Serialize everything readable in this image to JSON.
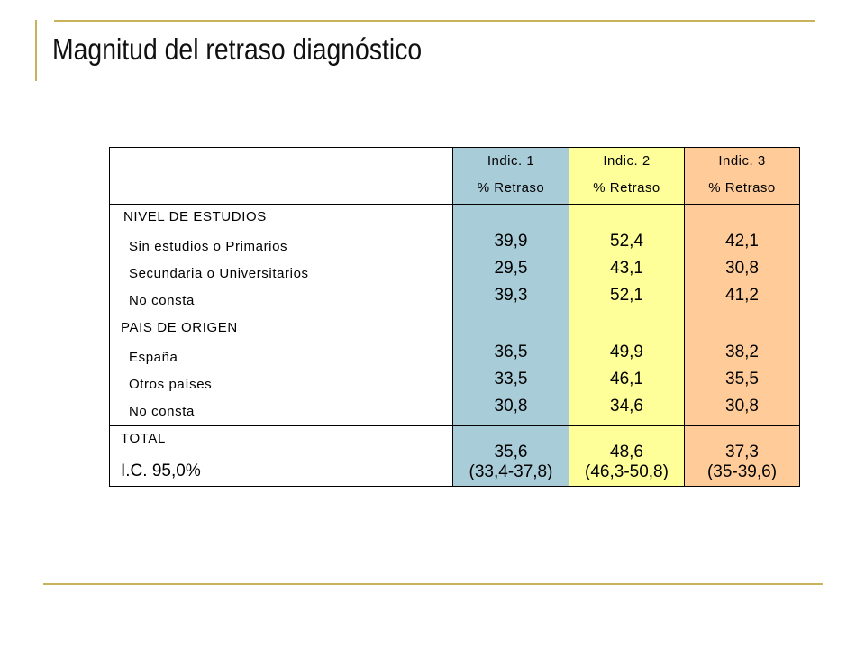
{
  "title": "Magnitud del retraso diagnóstico",
  "colors": {
    "accent_rule": "#c9b25a",
    "indic1": "#a9ccd9",
    "indic2": "#ffff99",
    "indic3": "#ffcc99"
  },
  "table": {
    "headers": [
      {
        "name": "Indic. 1",
        "sub": "% Retraso"
      },
      {
        "name": "Indic. 2",
        "sub": "% Retraso"
      },
      {
        "name": "Indic. 3",
        "sub": "% Retraso"
      }
    ],
    "groups": [
      {
        "title": "NIVEL DE ESTUDIOS",
        "rows": [
          {
            "label": "Sin estudios o Primarios",
            "values": [
              "39,9",
              "52,4",
              "42,1"
            ]
          },
          {
            "label": "Secundaria o Universitarios",
            "values": [
              "29,5",
              "43,1",
              "30,8"
            ]
          },
          {
            "label": "No consta",
            "values": [
              "39,3",
              "52,1",
              "41,2"
            ]
          }
        ]
      },
      {
        "title": "PAIS DE ORIGEN",
        "rows": [
          {
            "label": "España",
            "values": [
              "36,5",
              "49,9",
              "38,2"
            ]
          },
          {
            "label": "Otros países",
            "values": [
              "33,5",
              "46,1",
              "35,5"
            ]
          },
          {
            "label": "No consta",
            "values": [
              "30,8",
              "34,6",
              "30,8"
            ]
          }
        ]
      }
    ],
    "total": {
      "label": "TOTAL",
      "ci_label": "I.C. 95,0%",
      "values": [
        "35,6",
        "48,6",
        "37,3"
      ],
      "ci": [
        "(33,4-37,8)",
        "(46,3-50,8)",
        "(35-39,6)"
      ]
    }
  }
}
